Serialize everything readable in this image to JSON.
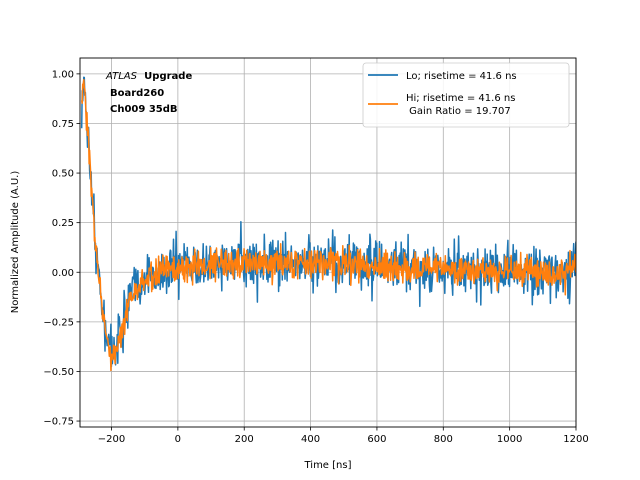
{
  "chart_data": {
    "type": "line",
    "xlabel": "Time [ns]",
    "ylabel": "Normalized Amplitude (A.U.)",
    "xlim": [
      -295,
      1200
    ],
    "ylim": [
      -0.78,
      1.08
    ],
    "x_ticks": [
      -200,
      0,
      200,
      400,
      600,
      800,
      1000,
      1200
    ],
    "x_tick_labels": [
      "−200",
      "0",
      "200",
      "400",
      "600",
      "800",
      "1000",
      "1200"
    ],
    "y_ticks": [
      -0.75,
      -0.5,
      -0.25,
      0.0,
      0.25,
      0.5,
      0.75,
      1.0
    ],
    "y_tick_labels": [
      "−0.75",
      "−0.50",
      "−0.25",
      "0.00",
      "0.25",
      "0.50",
      "0.75",
      "1.00"
    ],
    "grid": true,
    "legend_position": "top-right",
    "annotation": {
      "italic": "ATLAS",
      "bold": "Upgrade",
      "line2": "Board260",
      "line3": "Ch009 35dB"
    },
    "series": [
      {
        "name": "Lo; risetime = 41.6 ns",
        "color": "#1f77b4",
        "noise": 0.11,
        "x": [
          -290,
          -285,
          -280,
          -275,
          -270,
          -265,
          -260,
          -255,
          -250,
          -245,
          -240,
          -230,
          -220,
          -210,
          -200,
          -190,
          -180,
          -170,
          -160,
          -150,
          -140,
          -130,
          -120,
          -100,
          -80,
          -60,
          -40,
          -20,
          0,
          50,
          100,
          200,
          300,
          400,
          500,
          600,
          700,
          800,
          900,
          1000,
          1100,
          1200
        ],
        "y": [
          0.82,
          0.95,
          0.9,
          0.8,
          0.7,
          0.55,
          0.42,
          0.3,
          0.18,
          0.08,
          0.0,
          -0.15,
          -0.25,
          -0.35,
          -0.4,
          -0.38,
          -0.33,
          -0.28,
          -0.22,
          -0.17,
          -0.12,
          -0.09,
          -0.06,
          -0.03,
          -0.02,
          -0.01,
          0.0,
          0.01,
          0.02,
          0.03,
          0.04,
          0.05,
          0.05,
          0.05,
          0.04,
          0.03,
          0.02,
          0.02,
          0.01,
          0.01,
          0.0,
          0.0
        ]
      },
      {
        "name": "Hi; risetime = 41.6 ns\n Gain Ratio = 19.707",
        "color": "#ff7f0e",
        "noise": 0.065,
        "x": [
          -290,
          -285,
          -280,
          -275,
          -270,
          -265,
          -260,
          -255,
          -250,
          -245,
          -240,
          -230,
          -220,
          -210,
          -200,
          -190,
          -180,
          -170,
          -160,
          -150,
          -140,
          -130,
          -120,
          -100,
          -80,
          -60,
          -40,
          -20,
          0,
          50,
          100,
          200,
          300,
          400,
          500,
          600,
          700,
          800,
          900,
          1000,
          1100,
          1200
        ],
        "y": [
          0.85,
          0.95,
          0.88,
          0.78,
          0.68,
          0.53,
          0.4,
          0.28,
          0.16,
          0.06,
          -0.02,
          -0.16,
          -0.27,
          -0.37,
          -0.42,
          -0.4,
          -0.35,
          -0.3,
          -0.24,
          -0.19,
          -0.14,
          -0.1,
          -0.07,
          -0.04,
          -0.02,
          -0.01,
          0.0,
          0.01,
          0.02,
          0.03,
          0.04,
          0.05,
          0.05,
          0.05,
          0.04,
          0.03,
          0.02,
          0.02,
          0.01,
          0.01,
          0.0,
          0.0
        ]
      }
    ]
  }
}
